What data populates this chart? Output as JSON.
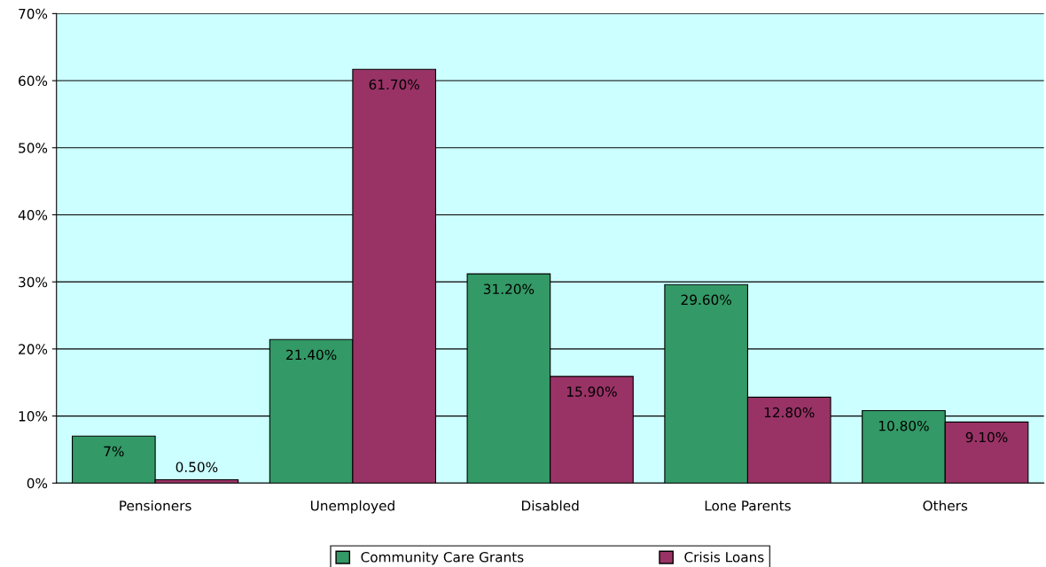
{
  "chart_data": {
    "type": "bar",
    "categories": [
      "Pensioners",
      "Unemployed",
      "Disabled",
      "Lone Parents",
      "Others"
    ],
    "series": [
      {
        "name": "Community Care Grants",
        "color": "#339966",
        "values": [
          7,
          21.4,
          31.2,
          29.6,
          10.8
        ],
        "value_labels": [
          "7%",
          "21.40%",
          "31.20%",
          "29.60%",
          "10.80%"
        ]
      },
      {
        "name": "Crisis Loans",
        "color": "#993366",
        "values": [
          0.5,
          61.7,
          15.9,
          12.8,
          9.1
        ],
        "value_labels": [
          "0.50%",
          "61.70%",
          "15.90%",
          "12.80%",
          "9.10%"
        ]
      }
    ],
    "ylim": [
      0,
      70
    ],
    "yticks": [
      {
        "value": 0,
        "label": "0%"
      },
      {
        "value": 10,
        "label": "10%"
      },
      {
        "value": 20,
        "label": "20%"
      },
      {
        "value": 30,
        "label": "30%"
      },
      {
        "value": 40,
        "label": "40%"
      },
      {
        "value": 50,
        "label": "50%"
      },
      {
        "value": 60,
        "label": "60%"
      },
      {
        "value": 70,
        "label": "70%"
      }
    ],
    "grid": "y",
    "legend": "bottom"
  }
}
